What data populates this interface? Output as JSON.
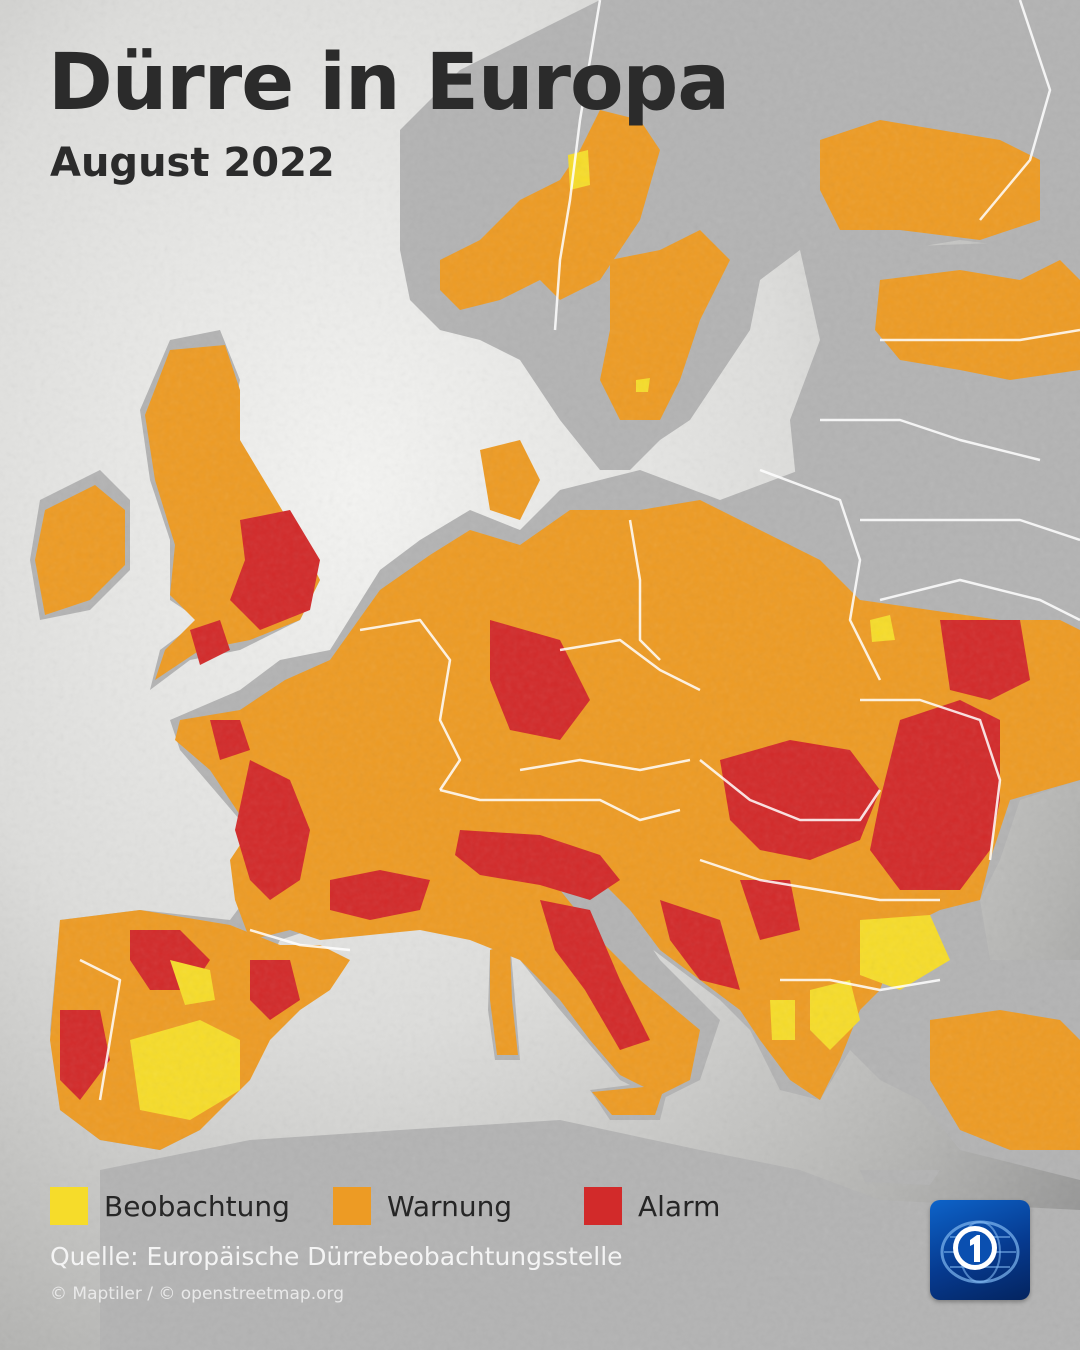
{
  "header": {
    "title": "Dürre in Europa",
    "subtitle": "August 2022"
  },
  "legend": {
    "items": [
      {
        "label": "Beobachtung",
        "color": "#f6dc2a"
      },
      {
        "label": "Warnung",
        "color": "#ed9b24"
      },
      {
        "label": "Alarm",
        "color": "#d22a2a"
      }
    ]
  },
  "footer": {
    "source": "Quelle: Europäische Dürrebeobachtungsstelle",
    "copyright": "© Maptiler / © openstreetmap.org"
  },
  "colors": {
    "land": "#b5b5b5",
    "sea_light": "#f2f2f0",
    "sea_dark": "#9a9a9a",
    "borders": "#ffffff",
    "logo": "#0d5cc0"
  },
  "logo": {
    "icon": "tagesschau-logo-icon"
  }
}
